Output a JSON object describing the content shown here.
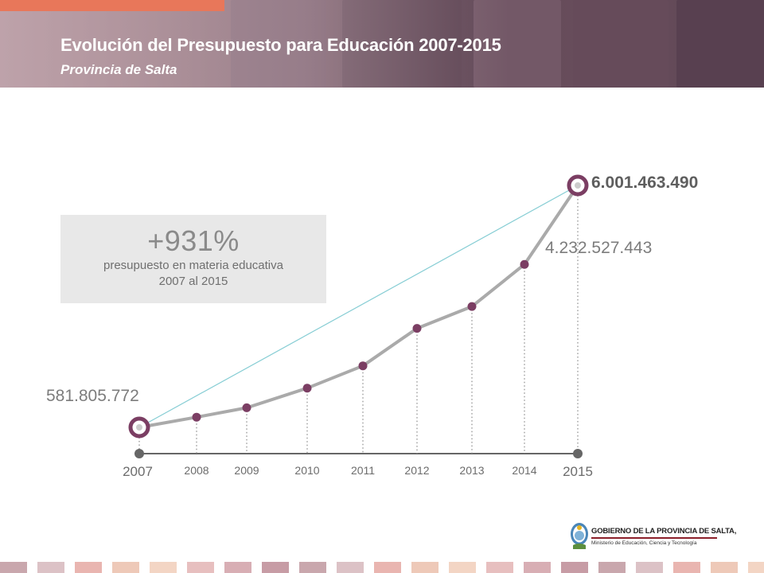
{
  "header": {
    "title": "Evolución del Presupuesto para Educación 2007-2015",
    "subtitle": "Provincia de Salta"
  },
  "highlight": {
    "value": "+931%",
    "line1": "presupuesto en materia educativa",
    "line2": "2007 al 2015"
  },
  "chart_data": {
    "type": "line",
    "title": "",
    "xlabel": "",
    "ylabel": "",
    "grid": false,
    "x": [
      "2007",
      "2008",
      "2009",
      "2010",
      "2011",
      "2012",
      "2013",
      "2014",
      "2015"
    ],
    "series": [
      {
        "values": [
          581805772,
          810000000,
          1020000000,
          1460000000,
          1960000000,
          2800000000,
          3290000000,
          4232527443,
          6001463490
        ]
      }
    ],
    "trend_line": {
      "from": "2007",
      "to": "2015"
    },
    "value_labels": {
      "2007": "581.805.772",
      "2014": "4.232.527.443",
      "2015": "6.001.463.490"
    },
    "colors": {
      "line": "#aaaaaa",
      "marker": "#7b3e63",
      "trend": "#86cdd4",
      "axis": "#666666"
    }
  },
  "footer": {
    "gov_name": "GOBIERNO DE LA PROVINCIA DE SALTA,",
    "ministry": "Ministerio de Educación, Ciencia y Tecnología"
  }
}
